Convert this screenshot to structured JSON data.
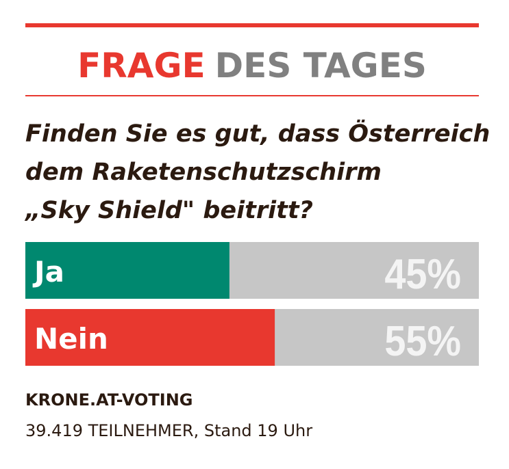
{
  "chart_data": {
    "type": "bar",
    "title": {
      "highlight": "FRAGE",
      "rest": "DES TAGES"
    },
    "subtitle": [
      "Finden Sie es gut, dass Österreich",
      "dem Raketenschutzschirm",
      "„Sky Shield\" beitritt?"
    ],
    "categories": [
      "Ja",
      "Nein"
    ],
    "values": [
      45,
      55
    ],
    "value_labels": [
      "45%",
      "55%"
    ],
    "colors": [
      "#00886f",
      "#e8382f"
    ],
    "xlim": [
      0,
      100
    ],
    "source": "KRONE.AT-VOTING",
    "note": "39.419 TEILNEHMER, Stand 19 Uhr"
  }
}
